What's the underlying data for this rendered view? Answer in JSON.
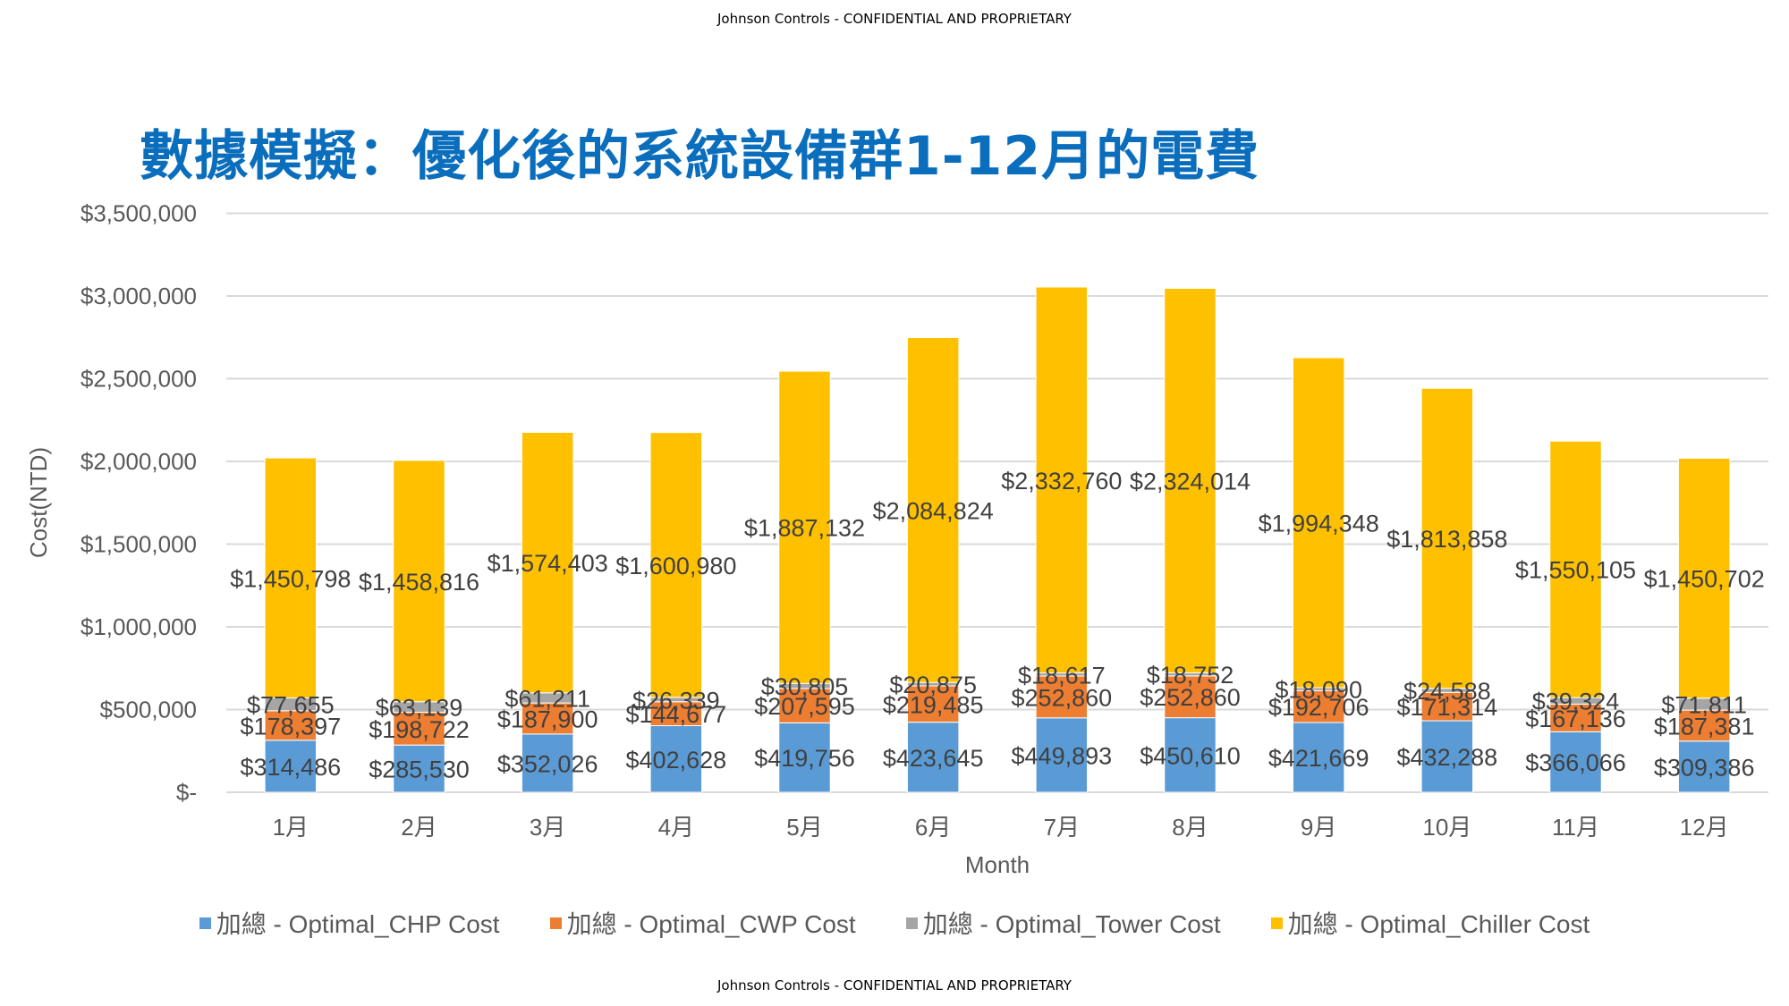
{
  "header": {
    "confidential_top": "Johnson Controls - CONFIDENTIAL AND PROPRIETARY"
  },
  "footer": {
    "confidential_bottom": "Johnson Controls - CONFIDENTIAL AND PROPRIETARY"
  },
  "title": "數據模擬：優化後的系統設備群1-12月的電費",
  "colors": {
    "title": "#0A6EBD",
    "chp": "#5B9BD5",
    "cwp": "#ED7D31",
    "tower": "#A5A5A5",
    "chiller": "#FFC000"
  },
  "chart_data": {
    "type": "bar",
    "stacked": true,
    "title": "數據模擬：優化後的系統設備群1-12月的電費",
    "xlabel": "Month",
    "ylabel": "Cost(NTD)",
    "ylim": [
      0,
      3500000
    ],
    "yticks": [
      0,
      500000,
      1000000,
      1500000,
      2000000,
      2500000,
      3000000,
      3500000
    ],
    "ytick_labels": [
      "$-",
      "$500,000",
      "$1,000,000",
      "$1,500,000",
      "$2,000,000",
      "$2,500,000",
      "$3,000,000",
      "$3,500,000"
    ],
    "grid": true,
    "legend_position": "bottom",
    "categories": [
      "1月",
      "2月",
      "3月",
      "4月",
      "5月",
      "6月",
      "7月",
      "8月",
      "9月",
      "10月",
      "11月",
      "12月"
    ],
    "series": [
      {
        "name": "加總 - Optimal_CHP Cost",
        "key": "chp",
        "values": [
          314486,
          285530,
          352026,
          402628,
          419756,
          423645,
          449893,
          450610,
          421669,
          432288,
          366066,
          309386
        ],
        "labels": [
          "$314,486",
          "$285,530",
          "$352,026",
          "$402,628",
          "$419,756",
          "$423,645",
          "$449,893",
          "$450,610",
          "$421,669",
          "$432,288",
          "$366,066",
          "$309,386"
        ]
      },
      {
        "name": "加總 - Optimal_CWP Cost",
        "key": "cwp",
        "values": [
          178397,
          198722,
          187900,
          144677,
          207595,
          219485,
          252860,
          252860,
          192706,
          171314,
          167136,
          187381
        ],
        "labels": [
          "$178,397",
          "$198,722",
          "$187,900",
          "$144,677",
          "$207,595",
          "$219,485",
          "$252,860",
          "$252,860",
          "$192,706",
          "$171,314",
          "$167,136",
          "$187,381"
        ]
      },
      {
        "name": "加總 - Optimal_Tower Cost",
        "key": "tower",
        "values": [
          77655,
          63139,
          61211,
          26339,
          30805,
          20875,
          18617,
          18752,
          18090,
          24588,
          39324,
          71811
        ],
        "labels": [
          "$77,655",
          "$63,139",
          "$61,211",
          "$26,339",
          "$30,805",
          "$20,875",
          "$18,617",
          "$18,752",
          "$18,090",
          "$24,588",
          "$39,324",
          "$71,811"
        ]
      },
      {
        "name": "加總 - Optimal_Chiller Cost",
        "key": "chiller",
        "values": [
          1450798,
          1458816,
          1574403,
          1600980,
          1887132,
          2084824,
          2332760,
          2324014,
          1994348,
          1813858,
          1550105,
          1450702
        ],
        "labels": [
          "$1,450,798",
          "$1,458,816",
          "$1,574,403",
          "$1,600,980",
          "$1,887,132",
          "$2,084,824",
          "$2,332,760",
          "$2,324,014",
          "$1,994,348",
          "$1,813,858",
          "$1,550,105",
          "$1,450,702"
        ]
      }
    ]
  }
}
